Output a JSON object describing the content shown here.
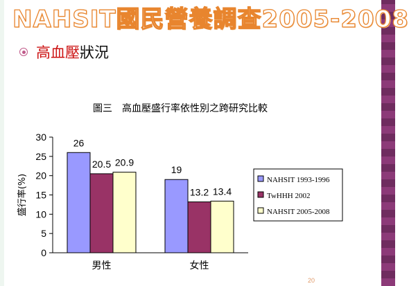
{
  "slide": {
    "title": "NAHSIT國民營養調查2005-2008",
    "bullet_red": "高血壓",
    "bullet_black": "狀況",
    "page_number": "20"
  },
  "colors": {
    "title_outline": "#e8852e",
    "bullet_accent": "#c05a8a",
    "side_bar": "#8c3a78"
  },
  "chart_data": {
    "type": "bar",
    "title": "圖三　高血壓盛行率依性別之跨研究比較",
    "xlabel": "",
    "ylabel": "盛行率(%)",
    "categories": [
      "男性",
      "女性"
    ],
    "ylim": [
      0,
      30
    ],
    "yticks": [
      0,
      5,
      10,
      15,
      20,
      25,
      30
    ],
    "grid": false,
    "legend_position": "right",
    "series": [
      {
        "name": "NAHSIT 1993-1996",
        "values": [
          26,
          19
        ],
        "labels": [
          "26",
          "19"
        ],
        "color": "#9999ff"
      },
      {
        "name": "TwHHH 2002",
        "values": [
          20.5,
          13.2
        ],
        "labels": [
          "20.5",
          "13.2"
        ],
        "color": "#993366"
      },
      {
        "name": "NAHSIT 2005-2008",
        "values": [
          20.9,
          13.4
        ],
        "labels": [
          "20.9",
          "13.4"
        ],
        "color": "#ffffcc"
      }
    ]
  }
}
